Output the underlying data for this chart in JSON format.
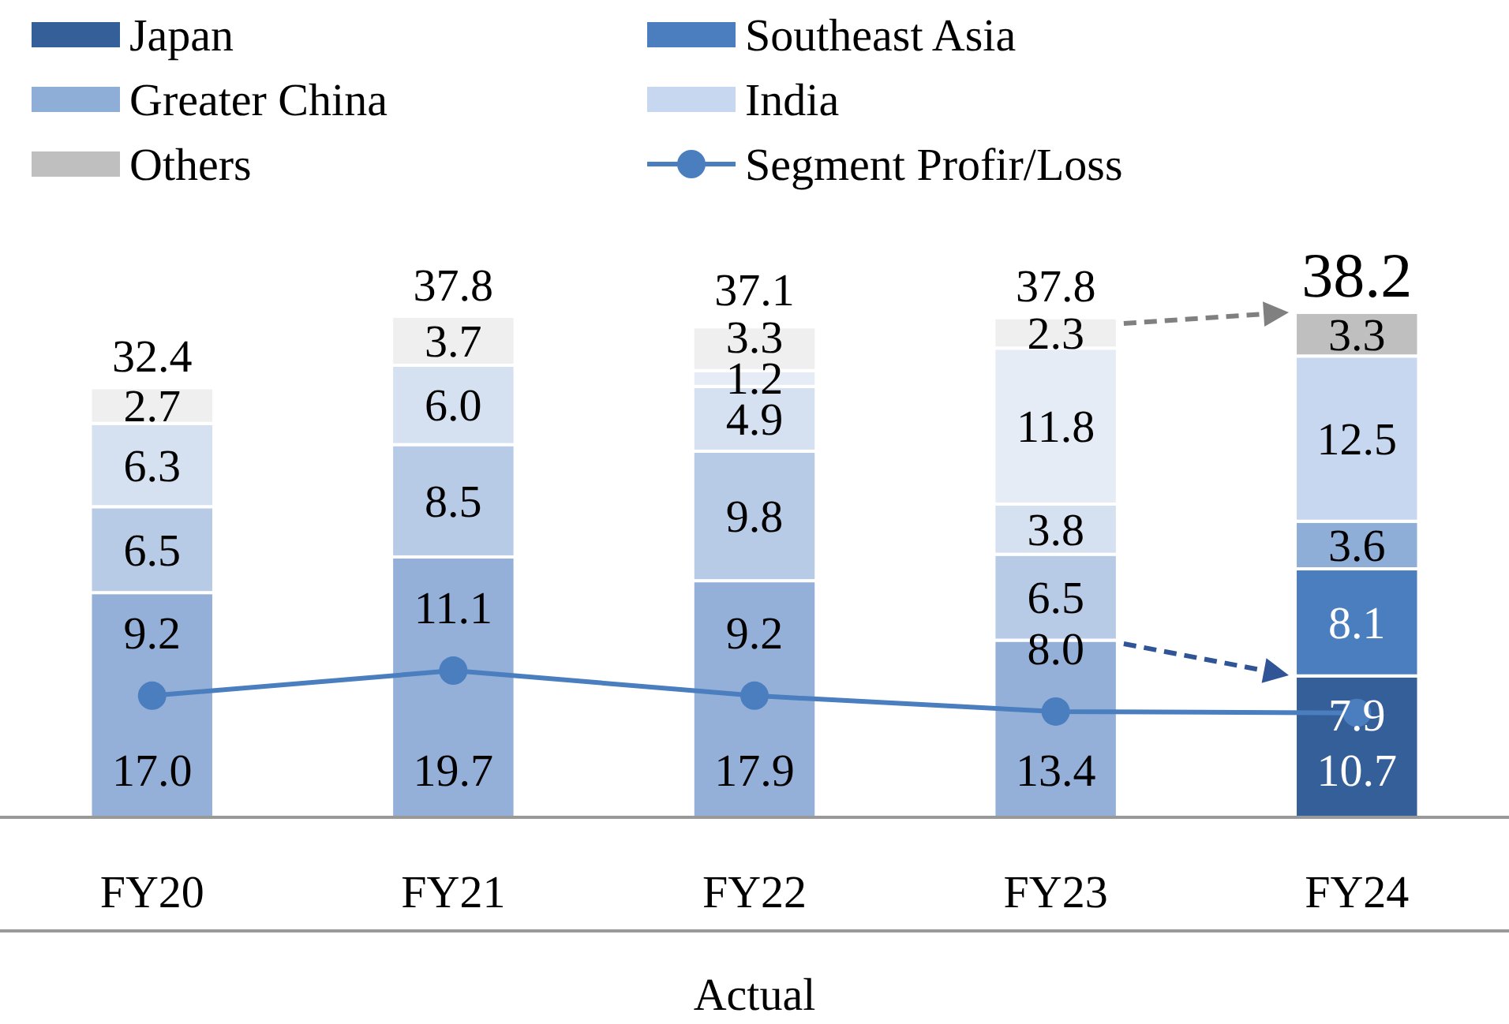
{
  "chart_data": {
    "type": "bar",
    "stacked": true,
    "xlabel": "Actual",
    "categories": [
      "FY20",
      "FY21",
      "FY22",
      "FY23",
      "FY24"
    ],
    "series": [
      {
        "name": "Japan",
        "color": "#345f98",
        "colors": [
          "#94b0d8",
          "#94b0d8",
          "#94b0d8",
          "#94b0d8",
          "#345f98"
        ],
        "values": [
          17.0,
          19.7,
          17.9,
          13.4,
          10.7
        ],
        "value_labels": [
          "17.0",
          "19.7",
          "17.9",
          "13.4",
          "10.7"
        ]
      },
      {
        "name": "Southeast Asia",
        "color": "#4a7ebf",
        "colors": [
          "#b7cae6",
          "#b7cae6",
          "#b7cae6",
          "#b7cae6",
          "#4a7ebf"
        ],
        "values": [
          6.5,
          8.5,
          9.8,
          6.5,
          8.1
        ],
        "value_labels": [
          "6.5",
          "8.5",
          "9.8",
          "6.5",
          "8.1"
        ]
      },
      {
        "name": "Greater China",
        "color": "#8eaed8",
        "colors": [
          "#d5e0f0",
          "#d5e0f0",
          "#d5e0f0",
          "#d5e0f0",
          "#8eaed8"
        ],
        "values": [
          6.3,
          6.0,
          4.9,
          3.8,
          3.6
        ],
        "value_labels": [
          "6.3",
          "6.0",
          "4.9",
          "3.8",
          "3.6"
        ]
      },
      {
        "name": "India",
        "color": "#c6d7ef",
        "colors": [
          null,
          null,
          "#e6ecf6",
          "#e6ecf6",
          "#c6d7ef"
        ],
        "values": [
          null,
          null,
          1.2,
          11.8,
          12.5
        ],
        "value_labels": [
          null,
          null,
          "1.2",
          "11.8",
          "12.5"
        ]
      },
      {
        "name": "Others",
        "color": "#bfbfbf",
        "colors": [
          "#efefef",
          "#efefef",
          "#efefef",
          "#efefef",
          "#bfbfbf"
        ],
        "values": [
          2.7,
          3.7,
          3.3,
          2.3,
          3.3
        ],
        "value_labels": [
          "2.7",
          "3.7",
          "3.3",
          "2.3",
          "3.3"
        ]
      },
      {
        "name": "Segment Profir/Loss",
        "type": "line",
        "color": "#4a7ebf",
        "values": [
          9.2,
          11.1,
          9.2,
          8.0,
          7.9
        ],
        "value_labels": [
          "9.2",
          "11.1",
          "9.2",
          "8.0",
          "7.9"
        ]
      }
    ],
    "totals": [
      "32.4",
      "37.8",
      "37.1",
      "37.8",
      "38.2"
    ],
    "marker": "circle",
    "legend": "top",
    "tick_labels": "x"
  }
}
